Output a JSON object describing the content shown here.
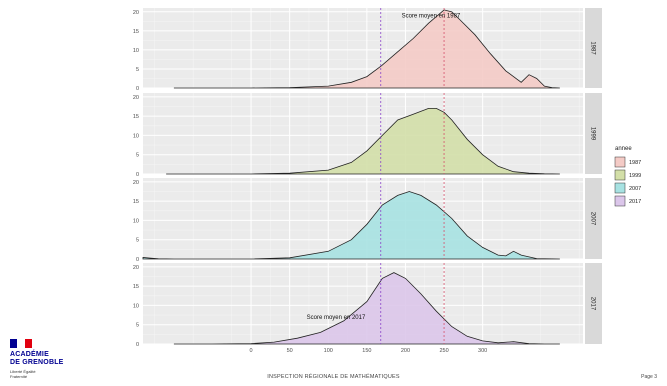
{
  "chart_data": {
    "type": "area",
    "facets": [
      "1987",
      "1999",
      "2007",
      "2017"
    ],
    "x_ticks": [
      0,
      50,
      100,
      150,
      200,
      250,
      300
    ],
    "y_ticks": [
      0,
      5,
      10,
      15,
      20
    ],
    "xlim": [
      -140,
      430
    ],
    "ylim": [
      0,
      21
    ],
    "grid": true,
    "legend_position": "right",
    "legend_title": "annee",
    "reference_lines": [
      {
        "x": 168,
        "color": "#8b45c9"
      },
      {
        "x": 250,
        "color": "#d4506a"
      }
    ],
    "annotations": [
      {
        "facet": "1987",
        "x": 233,
        "y": 18.5,
        "text": "Score moyen en 1987"
      },
      {
        "facet": "2017",
        "x": 110,
        "y": 6.5,
        "text": "Score moyen en 2017"
      }
    ],
    "series": [
      {
        "name": "1987",
        "fill": "#f4cbc6",
        "x": [
          -100,
          -50,
          0,
          50,
          100,
          130,
          150,
          170,
          190,
          210,
          230,
          250,
          260,
          270,
          290,
          310,
          330,
          350,
          360,
          370,
          380,
          390,
          400
        ],
        "y": [
          0,
          0,
          0,
          0.1,
          0.5,
          1.5,
          3,
          6,
          9.5,
          13,
          17,
          20.5,
          20,
          18,
          14,
          9,
          4.5,
          1.5,
          3.5,
          2.5,
          0.5,
          0.1,
          0
        ]
      },
      {
        "name": "1999",
        "fill": "#d3dfa8",
        "x": [
          -110,
          -50,
          0,
          50,
          100,
          130,
          150,
          170,
          190,
          210,
          230,
          240,
          250,
          260,
          280,
          300,
          320,
          340,
          360,
          380,
          400
        ],
        "y": [
          0,
          0,
          0,
          0.2,
          1,
          3,
          6,
          10,
          14,
          15.5,
          17,
          17,
          16,
          14,
          9,
          5,
          2,
          0.6,
          0.2,
          0.05,
          0
        ]
      },
      {
        "name": "2007",
        "fill": "#a7e2e2",
        "x": [
          -140,
          -130,
          -120,
          -100,
          -50,
          0,
          50,
          100,
          130,
          150,
          170,
          190,
          205,
          220,
          240,
          260,
          280,
          300,
          320,
          330,
          340,
          350,
          370,
          400
        ],
        "y": [
          0.4,
          0.2,
          0.05,
          0,
          0,
          0,
          0.3,
          2,
          5,
          9,
          14,
          16.5,
          17.5,
          16.5,
          14,
          10.5,
          6,
          3,
          1,
          0.8,
          2,
          1,
          0.1,
          0
        ]
      },
      {
        "name": "2017",
        "fill": "#dbc6ea",
        "x": [
          -100,
          -50,
          0,
          30,
          60,
          90,
          120,
          150,
          170,
          185,
          200,
          220,
          240,
          260,
          280,
          300,
          320,
          340,
          360,
          380,
          400
        ],
        "y": [
          0,
          0,
          0.1,
          0.5,
          1.5,
          3,
          6,
          11,
          17,
          18.5,
          17,
          13,
          8.5,
          4.5,
          2,
          0.8,
          0.3,
          0.6,
          0.1,
          0,
          0
        ]
      }
    ]
  },
  "brand": {
    "flag_colors": [
      "#000091",
      "#ffffff",
      "#e1000f"
    ],
    "name_line1": "ACADÉMIE",
    "name_line2": "DE GRENOBLE",
    "motto": "Liberté Égalité Fraternité"
  },
  "footer": {
    "text": "INSPECTION RÉGIONALE DE MATHÉMATIQUES",
    "page": "Page 3"
  }
}
